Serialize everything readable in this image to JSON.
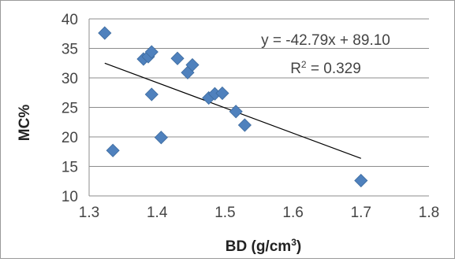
{
  "chart_data": {
    "type": "scatter",
    "xlabel": "BD (g/cm",
    "xlabel_sup": "3",
    "xlabel_suffix": ")",
    "ylabel": "MC%",
    "xlim": [
      1.3,
      1.8
    ],
    "ylim": [
      10,
      40
    ],
    "x_ticks": [
      "1.3",
      "1.4",
      "1.5",
      "1.6",
      "1.7",
      "1.8"
    ],
    "y_ticks": [
      "10",
      "15",
      "20",
      "25",
      "30",
      "35",
      "40"
    ],
    "grid": "horizontal",
    "marker_color": "#4f81bd",
    "points": [
      {
        "x": 1.323,
        "y": 37.6
      },
      {
        "x": 1.335,
        "y": 17.7
      },
      {
        "x": 1.38,
        "y": 33.2
      },
      {
        "x": 1.387,
        "y": 33.6
      },
      {
        "x": 1.392,
        "y": 34.4
      },
      {
        "x": 1.392,
        "y": 27.2
      },
      {
        "x": 1.406,
        "y": 19.9
      },
      {
        "x": 1.43,
        "y": 33.3
      },
      {
        "x": 1.445,
        "y": 30.9
      },
      {
        "x": 1.452,
        "y": 32.2
      },
      {
        "x": 1.476,
        "y": 26.6
      },
      {
        "x": 1.485,
        "y": 27.3
      },
      {
        "x": 1.496,
        "y": 27.4
      },
      {
        "x": 1.516,
        "y": 24.3
      },
      {
        "x": 1.529,
        "y": 22.0
      },
      {
        "x": 1.7,
        "y": 12.6
      }
    ],
    "trendline": {
      "slope": -42.79,
      "intercept": 89.1,
      "x_range": [
        1.323,
        1.7
      ],
      "equation": "y = -42.79x + 89.10",
      "r2_label": "R",
      "r2_sup": "2",
      "r2_value": " = 0.329"
    }
  }
}
